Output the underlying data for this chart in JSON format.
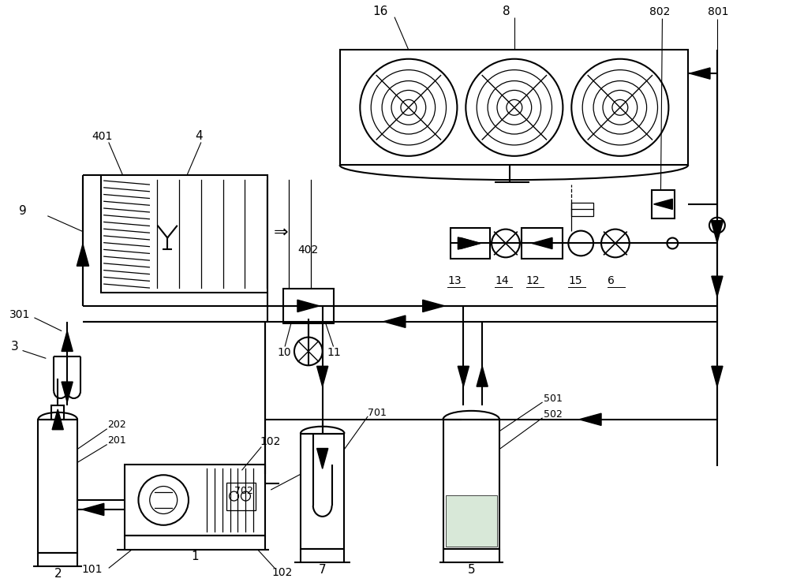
{
  "bg_color": "#ffffff",
  "line_color": "#000000",
  "lw": 1.5,
  "lw_thin": 0.9,
  "figsize": [
    10.0,
    7.43
  ],
  "dpi": 100
}
